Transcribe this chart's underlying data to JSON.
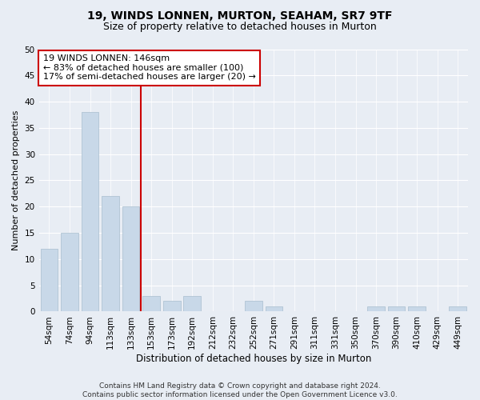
{
  "title": "19, WINDS LONNEN, MURTON, SEAHAM, SR7 9TF",
  "subtitle": "Size of property relative to detached houses in Murton",
  "xlabel": "Distribution of detached houses by size in Murton",
  "ylabel": "Number of detached properties",
  "categories": [
    "54sqm",
    "74sqm",
    "94sqm",
    "113sqm",
    "133sqm",
    "153sqm",
    "173sqm",
    "192sqm",
    "212sqm",
    "232sqm",
    "252sqm",
    "271sqm",
    "291sqm",
    "311sqm",
    "331sqm",
    "350sqm",
    "370sqm",
    "390sqm",
    "410sqm",
    "429sqm",
    "449sqm"
  ],
  "values": [
    12,
    15,
    38,
    22,
    20,
    3,
    2,
    3,
    0,
    0,
    2,
    1,
    0,
    0,
    0,
    0,
    1,
    1,
    1,
    0,
    1
  ],
  "bar_color": "#c8d8e8",
  "bar_edge_color": "#a8bece",
  "vline_x": 4.5,
  "vline_color": "#cc0000",
  "annotation_text": "19 WINDS LONNEN: 146sqm\n← 83% of detached houses are smaller (100)\n17% of semi-detached houses are larger (20) →",
  "annotation_box_color": "#ffffff",
  "annotation_box_edge": "#cc0000",
  "ylim": [
    0,
    50
  ],
  "yticks": [
    0,
    5,
    10,
    15,
    20,
    25,
    30,
    35,
    40,
    45,
    50
  ],
  "bg_color": "#e8edf4",
  "plot_bg_color": "#e8edf4",
  "footer": "Contains HM Land Registry data © Crown copyright and database right 2024.\nContains public sector information licensed under the Open Government Licence v3.0.",
  "title_fontsize": 10,
  "subtitle_fontsize": 9,
  "xlabel_fontsize": 8.5,
  "ylabel_fontsize": 8,
  "tick_fontsize": 7.5,
  "annotation_fontsize": 8,
  "footer_fontsize": 6.5
}
